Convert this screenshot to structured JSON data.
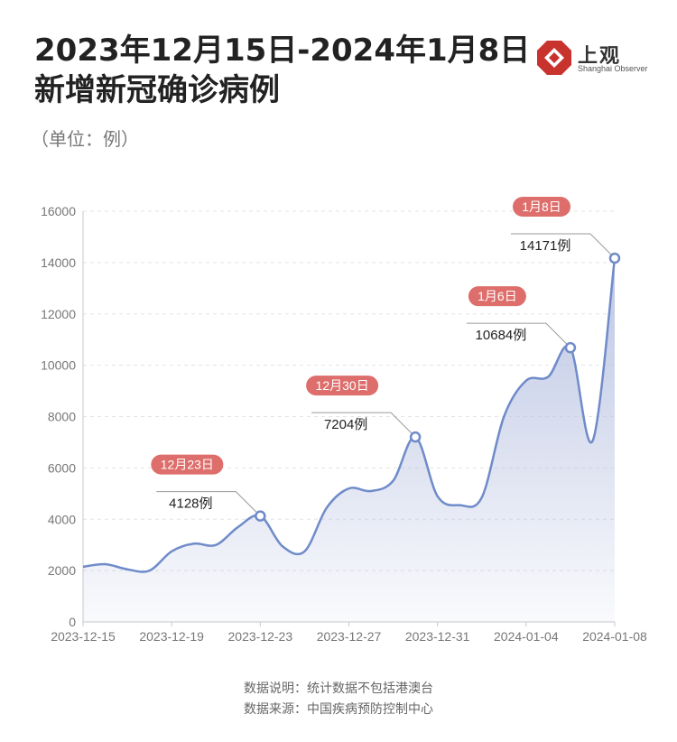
{
  "header": {
    "title_line1": "2023年12月15日-2024年1月8日",
    "title_line2": "新增新冠确诊病例",
    "unit": "（单位：例）"
  },
  "logo": {
    "name": "上观",
    "subtitle": "Shanghai Observer",
    "color": "#c8332e"
  },
  "footer": {
    "note": "数据说明：统计数据不包括港澳台",
    "source": "数据来源：中国疾病预防控制中心"
  },
  "chart_data": {
    "type": "area",
    "ylim": [
      0,
      16000
    ],
    "yticks": [
      "0",
      "2000",
      "4000",
      "6000",
      "8000",
      "10000",
      "12000",
      "14000",
      "16000"
    ],
    "xlim": [
      "2023-12-15",
      "2024-01-08"
    ],
    "xticks": [
      "2023-12-15",
      "2023-12-19",
      "2023-12-23",
      "2023-12-27",
      "2023-12-31",
      "2024-01-04",
      "2024-01-08"
    ],
    "x": [
      "2023-12-15",
      "2023-12-16",
      "2023-12-17",
      "2023-12-18",
      "2023-12-19",
      "2023-12-20",
      "2023-12-21",
      "2023-12-22",
      "2023-12-23",
      "2023-12-24",
      "2023-12-25",
      "2023-12-26",
      "2023-12-27",
      "2023-12-28",
      "2023-12-29",
      "2023-12-30",
      "2023-12-31",
      "2024-01-01",
      "2024-01-02",
      "2024-01-03",
      "2024-01-04",
      "2024-01-05",
      "2024-01-06",
      "2024-01-07",
      "2024-01-08"
    ],
    "values": [
      2150,
      2250,
      2050,
      2000,
      2750,
      3050,
      3000,
      3700,
      4128,
      2950,
      2750,
      4450,
      5200,
      5100,
      5500,
      7204,
      4900,
      4550,
      4850,
      8000,
      9400,
      9550,
      10684,
      7050,
      14171
    ],
    "grid": "horizontal-dashed",
    "line_color": "#6f8bc9",
    "fill_color": "#b9c3e2",
    "callout_color": "#dd6e6b",
    "annotations": [
      {
        "x": "2023-12-23",
        "date_label": "12月23日",
        "value_label": "4128例"
      },
      {
        "x": "2023-12-30",
        "date_label": "12月30日",
        "value_label": "7204例"
      },
      {
        "x": "2024-01-06",
        "date_label": "1月6日",
        "value_label": "10684例"
      },
      {
        "x": "2024-01-08",
        "date_label": "1月8日",
        "value_label": "14171例"
      }
    ]
  }
}
